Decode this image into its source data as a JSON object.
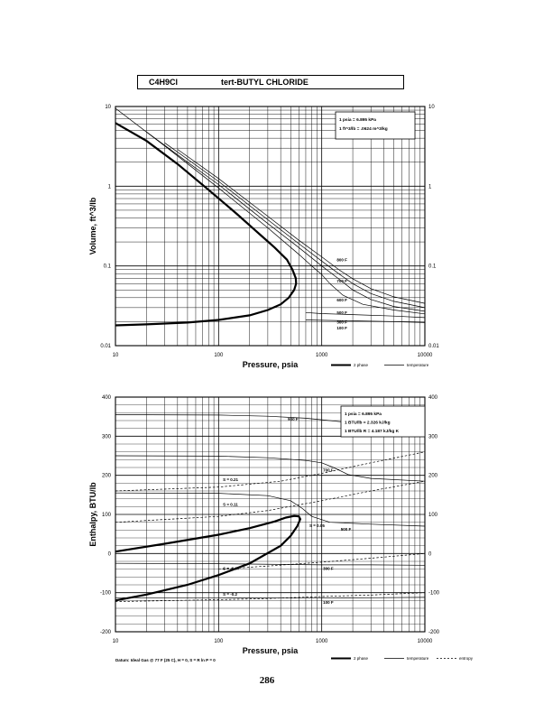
{
  "header": {
    "formula": "C4H9Cl",
    "name": "tert-BUTYL CHLORIDE"
  },
  "page_number": "286",
  "datum_note": "Datum: Ideal Gas @ 77 F (25 C), H = 0, S = R ln P = 0",
  "chart_data": [
    {
      "type": "line",
      "title": "",
      "xlabel": "Pressure, psia",
      "ylabel": "Volume, ft^3/lb",
      "x_scale": "log",
      "y_scale": "log",
      "xlim": [
        10,
        10000
      ],
      "ylim": [
        0.01,
        10
      ],
      "x_ticks": [
        "10",
        "100",
        "1000",
        "10000"
      ],
      "y_ticks": [
        "10",
        "1",
        "0.1",
        "0.01"
      ],
      "y_ticks_right": [
        "10",
        "1",
        "0.1",
        "0.01"
      ],
      "grid": true,
      "legend_position": "bottom-right",
      "legend": [
        "2 phase",
        "temperature"
      ],
      "notes": [
        "1 psia = 6.895 kPa",
        "1 ft^3/lb = .0624 m^3/kg"
      ],
      "series": [
        {
          "name": "2 phase",
          "style": "thick",
          "points": [
            [
              10,
              0.018
            ],
            [
              20,
              0.0185
            ],
            [
              50,
              0.0195
            ],
            [
              100,
              0.021
            ],
            [
              200,
              0.024
            ],
            [
              300,
              0.028
            ],
            [
              400,
              0.033
            ],
            [
              480,
              0.04
            ],
            [
              540,
              0.05
            ],
            [
              565,
              0.06
            ],
            [
              560,
              0.07
            ],
            [
              520,
              0.09
            ],
            [
              460,
              0.12
            ],
            [
              350,
              0.17
            ],
            [
              250,
              0.25
            ],
            [
              150,
              0.45
            ],
            [
              80,
              0.9
            ],
            [
              40,
              1.9
            ],
            [
              20,
              3.7
            ],
            [
              10,
              6.2
            ]
          ]
        },
        {
          "name": "500 F",
          "style": "thin",
          "label": "500 F",
          "points": [
            [
              10,
              9.5
            ],
            [
              30,
              3.2
            ],
            [
              100,
              0.95
            ],
            [
              300,
              0.3
            ],
            [
              600,
              0.14
            ],
            [
              800,
              0.1
            ],
            [
              1000,
              0.078
            ],
            [
              1200,
              0.06
            ],
            [
              1600,
              0.043
            ],
            [
              2500,
              0.033
            ],
            [
              5000,
              0.028
            ],
            [
              10000,
              0.025
            ]
          ]
        },
        {
          "name": "600 F",
          "style": "thin",
          "label": "600 F",
          "points": [
            [
              20,
              4.8
            ],
            [
              50,
              2.0
            ],
            [
              100,
              1.05
            ],
            [
              300,
              0.34
            ],
            [
              600,
              0.17
            ],
            [
              1000,
              0.1
            ],
            [
              1500,
              0.067
            ],
            [
              2000,
              0.05
            ],
            [
              3000,
              0.038
            ],
            [
              5000,
              0.031
            ],
            [
              10000,
              0.027
            ]
          ]
        },
        {
          "name": "700 F",
          "style": "thin",
          "label": "700 F",
          "points": [
            [
              30,
              3.5
            ],
            [
              100,
              1.15
            ],
            [
              300,
              0.38
            ],
            [
              600,
              0.19
            ],
            [
              1000,
              0.115
            ],
            [
              1500,
              0.078
            ],
            [
              2000,
              0.06
            ],
            [
              3000,
              0.045
            ],
            [
              5000,
              0.036
            ],
            [
              10000,
              0.03
            ]
          ]
        },
        {
          "name": "800 F",
          "style": "thin",
          "label": "800 F",
          "points": [
            [
              40,
              2.9
            ],
            [
              100,
              1.25
            ],
            [
              300,
              0.42
            ],
            [
              600,
              0.21
            ],
            [
              1000,
              0.13
            ],
            [
              1500,
              0.088
            ],
            [
              2000,
              0.069
            ],
            [
              3000,
              0.052
            ],
            [
              5000,
              0.041
            ],
            [
              10000,
              0.034
            ]
          ]
        },
        {
          "name": "300 F",
          "style": "thin",
          "label": "300 F",
          "points": [
            [
              700,
              0.026
            ],
            [
              1000,
              0.0252
            ],
            [
              2000,
              0.0245
            ],
            [
              5000,
              0.0235
            ],
            [
              10000,
              0.0225
            ]
          ]
        },
        {
          "name": "100 F",
          "style": "thin",
          "label": "100 F",
          "points": [
            [
              700,
              0.021
            ],
            [
              1000,
              0.0208
            ],
            [
              2000,
              0.0205
            ],
            [
              5000,
              0.02
            ],
            [
              10000,
              0.0195
            ]
          ]
        }
      ],
      "curve_labels": [
        {
          "text": "500 F",
          "x": 1400,
          "y": 0.025
        },
        {
          "text": "700 F",
          "x": 1400,
          "y": 0.062
        },
        {
          "text": "600 F",
          "x": 1400,
          "y": 0.036
        },
        {
          "text": "800 F",
          "x": 1400,
          "y": 0.115
        },
        {
          "text": "300 F",
          "x": 1400,
          "y": 0.019
        },
        {
          "text": "100 F",
          "x": 1400,
          "y": 0.016
        }
      ]
    },
    {
      "type": "line",
      "title": "",
      "xlabel": "Pressure, psia",
      "ylabel": "Enthalpy, BTU/lb",
      "x_scale": "log",
      "y_scale": "linear",
      "xlim": [
        10,
        10000
      ],
      "ylim": [
        -200,
        400
      ],
      "x_ticks": [
        "10",
        "100",
        "1000",
        "10000"
      ],
      "y_ticks": [
        "400",
        "300",
        "200",
        "100",
        "0",
        "-100",
        "-200"
      ],
      "y_ticks_right": [
        "400",
        "300",
        "200",
        "100",
        "0",
        "-100",
        "-200"
      ],
      "grid": true,
      "legend_position": "bottom-right",
      "legend": [
        "2 phase",
        "temperature",
        "entropy"
      ],
      "notes": [
        "1 psia = 6.895 kPa",
        "1 BTU/lb = 2.326 kJ/kg",
        "1 BTU/lb R = 4.187 kJ/kg K"
      ],
      "series": [
        {
          "name": "2 phase",
          "style": "thick",
          "points": [
            [
              10,
              5
            ],
            [
              30,
              25
            ],
            [
              100,
              48
            ],
            [
              200,
              65
            ],
            [
              350,
              82
            ],
            [
              450,
              92
            ],
            [
              540,
              96
            ],
            [
              600,
              95
            ],
            [
              620,
              88
            ],
            [
              580,
              70
            ],
            [
              500,
              45
            ],
            [
              400,
              20
            ],
            [
              200,
              -25
            ],
            [
              100,
              -55
            ],
            [
              50,
              -80
            ],
            [
              20,
              -105
            ],
            [
              10,
              -120
            ]
          ]
        },
        {
          "name": "900 F",
          "style": "thin",
          "points": [
            [
              10,
              355
            ],
            [
              100,
              354
            ],
            [
              300,
              351
            ],
            [
              700,
              346
            ],
            [
              1000,
              342
            ],
            [
              2000,
              334
            ],
            [
              5000,
              325
            ],
            [
              10000,
              318
            ]
          ]
        },
        {
          "name": "700 F",
          "style": "thin",
          "points": [
            [
              10,
              250
            ],
            [
              100,
              249
            ],
            [
              300,
              245
            ],
            [
              700,
              238
            ],
            [
              1000,
              232
            ],
            [
              1300,
              220
            ],
            [
              1800,
              202
            ],
            [
              3000,
              192
            ],
            [
              10000,
              185
            ]
          ]
        },
        {
          "name": "500 F",
          "style": "thin",
          "points": [
            [
              10,
              155
            ],
            [
              100,
              154
            ],
            [
              300,
              148
            ],
            [
              500,
              135
            ],
            [
              650,
              115
            ],
            [
              800,
              95
            ],
            [
              1200,
              80
            ],
            [
              3000,
              75
            ],
            [
              10000,
              70
            ]
          ]
        },
        {
          "name": "300 F",
          "style": "thin",
          "points": [
            [
              10,
              -25
            ],
            [
              100,
              -26
            ],
            [
              500,
              -28
            ],
            [
              1000,
              -29
            ],
            [
              3000,
              -29
            ],
            [
              10000,
              -30
            ]
          ]
        },
        {
          "name": "100 F",
          "style": "thin",
          "points": [
            [
              10,
              -113
            ],
            [
              100,
              -113
            ],
            [
              500,
              -114
            ],
            [
              1000,
              -114
            ],
            [
              3000,
              -113
            ],
            [
              10000,
              -112
            ]
          ]
        },
        {
          "name": "S=0.21",
          "style": "dashed",
          "points": [
            [
              10,
              160
            ],
            [
              100,
              170
            ],
            [
              400,
              185
            ],
            [
              1000,
              205
            ],
            [
              3000,
              232
            ],
            [
              10000,
              260
            ]
          ]
        },
        {
          "name": "S=0.11",
          "style": "dashed",
          "points": [
            [
              10,
              80
            ],
            [
              100,
              95
            ],
            [
              300,
              110
            ],
            [
              1000,
              135
            ],
            [
              3000,
              160
            ],
            [
              10000,
              185
            ]
          ]
        },
        {
          "name": "S=-0.07",
          "style": "dashed",
          "points": [
            [
              100,
              -40
            ],
            [
              300,
              -32
            ],
            [
              1000,
              -22
            ],
            [
              3000,
              -12
            ],
            [
              10000,
              0
            ]
          ]
        },
        {
          "name": "S=-0.2",
          "style": "dashed",
          "points": [
            [
              10,
              -123
            ],
            [
              100,
              -118
            ],
            [
              300,
              -115
            ],
            [
              1000,
              -110
            ],
            [
              3000,
              -106
            ],
            [
              10000,
              -100
            ]
          ]
        }
      ],
      "curve_labels": [
        {
          "text": "900 F",
          "x": 470,
          "y": 340
        },
        {
          "text": "700 F",
          "x": 1030,
          "y": 210
        },
        {
          "text": "500 F",
          "x": 1530,
          "y": 58
        },
        {
          "text": "300 F",
          "x": 1030,
          "y": -42
        },
        {
          "text": "100 F",
          "x": 1030,
          "y": -128
        },
        {
          "text": "S = 0.21",
          "x": 110,
          "y": 185
        },
        {
          "text": "S = 0.11",
          "x": 110,
          "y": 122
        },
        {
          "text": "S = 0.05",
          "x": 760,
          "y": 68
        },
        {
          "text": "S = -0.07",
          "x": 110,
          "y": -42
        },
        {
          "text": "S = -0.2",
          "x": 110,
          "y": -108
        }
      ]
    }
  ]
}
